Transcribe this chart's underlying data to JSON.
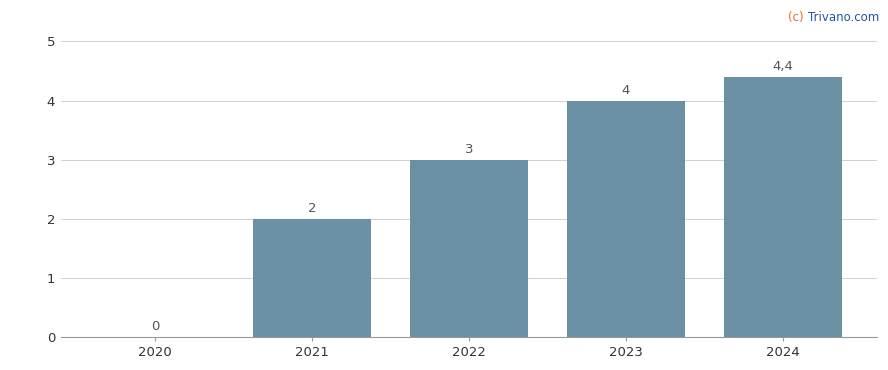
{
  "categories": [
    "2020",
    "2021",
    "2022",
    "2023",
    "2024"
  ],
  "values": [
    0,
    2,
    3,
    4,
    4.4
  ],
  "bar_color": "#6b8fa3",
  "bar_width": 0.75,
  "ylim": [
    0,
    5.2
  ],
  "yticks": [
    0,
    1,
    2,
    3,
    4,
    5
  ],
  "value_labels": [
    "0",
    "2",
    "3",
    "4",
    "4,4"
  ],
  "value_label_color": "#555555",
  "value_label_fontsize": 9.5,
  "grid_color": "#d0d0d0",
  "grid_linewidth": 0.7,
  "watermark_c": "(c) ",
  "watermark_rest": "Trivano.com",
  "watermark_color_c": "#e07020",
  "watermark_color_rest": "#2255aa",
  "watermark_fontsize": 8.5,
  "tick_label_fontsize": 9.5,
  "tick_label_color": "#333333",
  "background_color": "#ffffff",
  "spine_color": "#999999",
  "xlim": [
    -0.6,
    4.6
  ]
}
